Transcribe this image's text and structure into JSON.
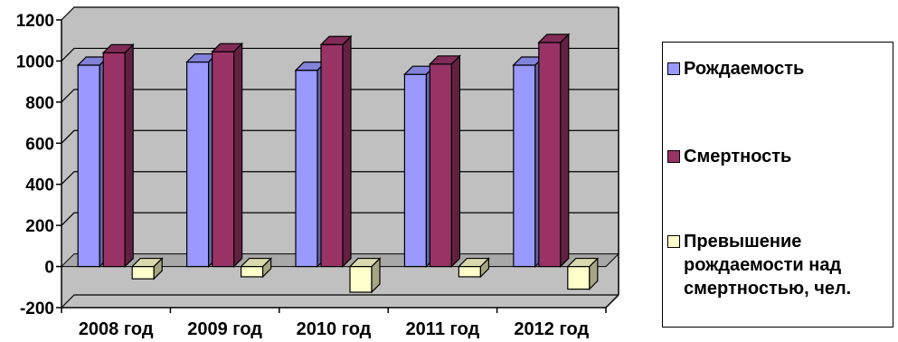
{
  "chart_data": {
    "type": "bar",
    "categories": [
      "2008 год",
      "2009 год",
      "2010 год",
      "2011 год",
      "2012 год"
    ],
    "series": [
      {
        "name": "Рождаемость",
        "values": [
          980,
          995,
          955,
          935,
          980
        ],
        "color": "#9999ff"
      },
      {
        "name": "Смертность",
        "values": [
          1040,
          1045,
          1080,
          985,
          1090
        ],
        "color": "#993366"
      },
      {
        "name": "Превышение рождаемости над смертностью, чел.",
        "values": [
          -60,
          -50,
          -125,
          -50,
          -110
        ],
        "color": "#ffffcc"
      }
    ],
    "yticks": [
      "1200",
      "1000",
      "800",
      "600",
      "400",
      "200",
      "0",
      "-200"
    ],
    "ylim": [
      -200,
      1200
    ],
    "plot_background": "#c0c0c0",
    "grid": true,
    "legend_position": "right",
    "view": "3d-columns"
  },
  "legend": {
    "items": [
      {
        "label": "Рождаемость"
      },
      {
        "label": "Смертность"
      },
      {
        "label": "Превышение\nрождаемости над\nсмертностью, чел."
      }
    ]
  }
}
